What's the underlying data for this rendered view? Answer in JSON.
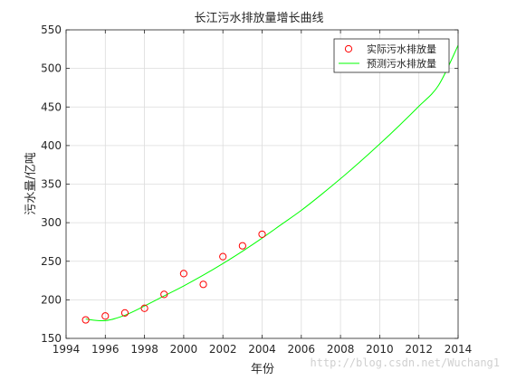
{
  "chart_data": {
    "type": "line",
    "title": "长江污水排放量增长曲线",
    "xlabel": "年份",
    "ylabel": "污水量/亿吨",
    "xlim": [
      1994,
      2014
    ],
    "ylim": [
      150,
      550
    ],
    "xticks": [
      1994,
      1996,
      1998,
      2000,
      2002,
      2004,
      2006,
      2008,
      2010,
      2012,
      2014
    ],
    "yticks": [
      150,
      200,
      250,
      300,
      350,
      400,
      450,
      500,
      550
    ],
    "grid": true,
    "legend_position": "top-right",
    "series": [
      {
        "name": "实际污水排放量",
        "kind": "scatter",
        "marker": "circle-open",
        "color": "#ff0000",
        "x": [
          1995,
          1996,
          1997,
          1998,
          1999,
          2000,
          2001,
          2002,
          2003,
          2004
        ],
        "y": [
          174,
          179,
          183,
          189,
          207,
          234,
          220,
          256,
          270,
          285
        ]
      },
      {
        "name": "预测污水排放量",
        "kind": "line",
        "color": "#00ff00",
        "x": [
          1995,
          1996,
          1997,
          1998,
          1999,
          2000,
          2001,
          2002,
          2003,
          2004,
          2005,
          2006,
          2007,
          2008,
          2009,
          2010,
          2011,
          2012,
          2013,
          2014
        ],
        "y": [
          175,
          173,
          180,
          192,
          205,
          218,
          232,
          247,
          263,
          280,
          298,
          316,
          336,
          357,
          379,
          402,
          426,
          451,
          478,
          530
        ]
      }
    ]
  },
  "watermark": "http://blog.csdn.net/Wuchang1"
}
